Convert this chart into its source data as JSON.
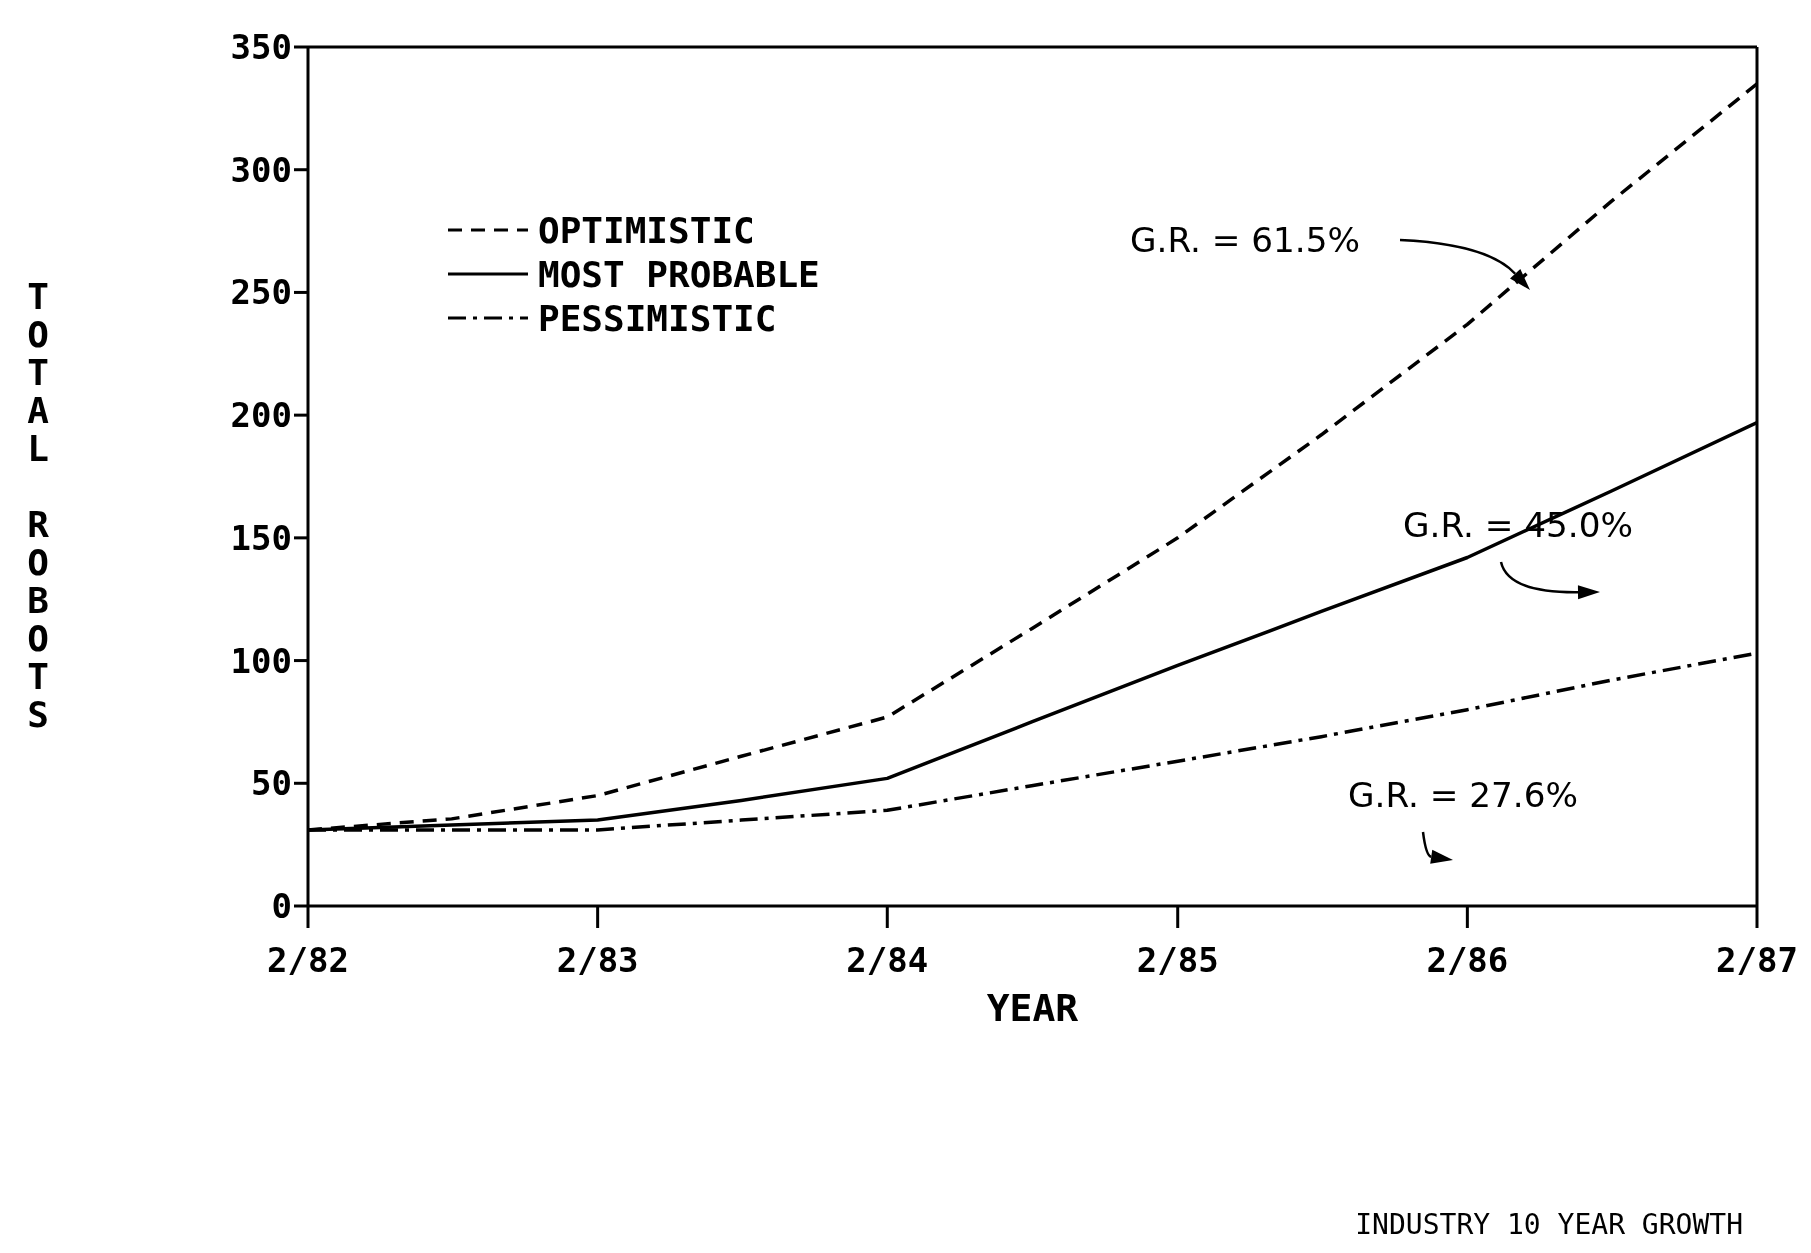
{
  "chart_data": {
    "type": "line",
    "xlabel": "YEAR",
    "ylabel": "TOTAL ROBOTS",
    "x": [
      "1982-02",
      "1982-08",
      "1983-02",
      "1983-08",
      "1984-02",
      "1984-08",
      "1985-02",
      "1985-08",
      "1986-02",
      "1986-08",
      "1987-02"
    ],
    "series": [
      {
        "name": "OPTIMISTIC",
        "color": "#000000",
        "line_style": "dashed",
        "values": [
          31,
          35.5,
          45,
          61,
          77,
          113,
          150,
          192,
          237,
          287,
          335
        ]
      },
      {
        "name": "MOST PROBABLE",
        "color": "#000000",
        "line_style": "solid",
        "values": [
          31,
          33,
          35,
          43,
          52,
          75,
          98,
          120,
          142,
          169,
          197
        ]
      },
      {
        "name": "PESSIMISTIC",
        "color": "#000000",
        "line_style": "dotted",
        "values": [
          31,
          31,
          31,
          35,
          39,
          49,
          59,
          69,
          80,
          92,
          103
        ]
      }
    ],
    "xlim": [
      "1982-02",
      "1987-02"
    ],
    "xticks": [
      {
        "value": "1982-02",
        "label": "2/82"
      },
      {
        "value": "1983-02",
        "label": "2/83"
      },
      {
        "value": "1984-02",
        "label": "2/84"
      },
      {
        "value": "1985-02",
        "label": "2/85"
      },
      {
        "value": "1986-02",
        "label": "2/86"
      },
      {
        "value": "1987-02",
        "label": "2/87"
      }
    ],
    "ylim": [
      0,
      350
    ],
    "yticks": [
      0,
      50,
      100,
      150,
      200,
      250,
      300,
      350
    ],
    "legend": "top left",
    "marker": "none",
    "annotations": [
      "G.R. = 61.5%",
      "G.R. = 45.0%",
      "G.R. = 27.6%",
      "INDUSTRY 10 YEAR GROWTH"
    ]
  }
}
